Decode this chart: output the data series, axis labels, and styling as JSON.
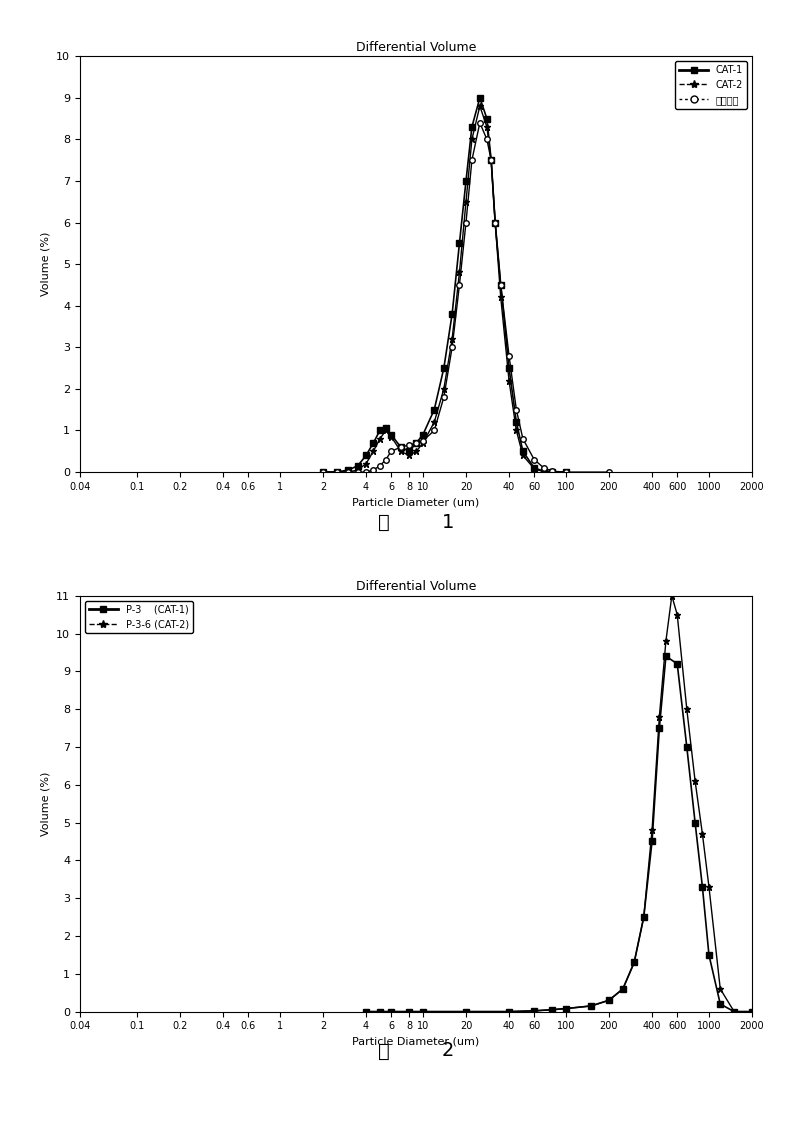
{
  "chart1": {
    "title": "Differential Volume",
    "xlabel": "Particle Diameter (um)",
    "ylabel": "Volume (%)",
    "ylim": [
      0,
      10
    ],
    "legend": [
      "CAT-1",
      "CAT-2",
      "多孔硅胶"
    ],
    "cat1_x": [
      2,
      2.5,
      3,
      3.5,
      4,
      4.5,
      5,
      5.5,
      6,
      7,
      8,
      9,
      10,
      12,
      14,
      16,
      18,
      20,
      22,
      25,
      28,
      30,
      32,
      35,
      40,
      45,
      50,
      60,
      70,
      80,
      100
    ],
    "cat1_y": [
      0.0,
      0.0,
      0.05,
      0.15,
      0.4,
      0.7,
      1.0,
      1.05,
      0.9,
      0.6,
      0.5,
      0.7,
      0.9,
      1.5,
      2.5,
      3.8,
      5.5,
      7.0,
      8.3,
      9.0,
      8.5,
      7.5,
      6.0,
      4.5,
      2.5,
      1.2,
      0.5,
      0.1,
      0.02,
      0.0,
      0.0
    ],
    "cat2_x": [
      2,
      2.5,
      3,
      3.5,
      4,
      4.5,
      5,
      5.5,
      6,
      7,
      8,
      9,
      10,
      12,
      14,
      16,
      18,
      20,
      22,
      25,
      28,
      30,
      32,
      35,
      40,
      45,
      50,
      60,
      70,
      80,
      100
    ],
    "cat2_y": [
      0.0,
      0.0,
      0.0,
      0.05,
      0.2,
      0.5,
      0.8,
      1.0,
      0.85,
      0.5,
      0.4,
      0.5,
      0.7,
      1.2,
      2.0,
      3.2,
      4.8,
      6.5,
      8.0,
      8.8,
      8.3,
      7.5,
      6.0,
      4.2,
      2.2,
      1.0,
      0.4,
      0.08,
      0.01,
      0.0,
      0.0
    ],
    "silica_x": [
      2,
      2.5,
      3,
      3.5,
      4,
      4.5,
      5,
      5.5,
      6,
      7,
      8,
      9,
      10,
      12,
      14,
      16,
      18,
      20,
      22,
      25,
      28,
      30,
      32,
      35,
      40,
      45,
      50,
      60,
      70,
      80,
      100,
      200
    ],
    "silica_y": [
      0.0,
      0.0,
      0.0,
      0.0,
      0.0,
      0.05,
      0.15,
      0.3,
      0.5,
      0.6,
      0.65,
      0.7,
      0.75,
      1.0,
      1.8,
      3.0,
      4.5,
      6.0,
      7.5,
      8.4,
      8.0,
      7.5,
      6.0,
      4.5,
      2.8,
      1.5,
      0.8,
      0.3,
      0.1,
      0.02,
      0.0,
      0.0
    ],
    "xticks": [
      0.04,
      0.1,
      0.2,
      0.4,
      0.6,
      1,
      2,
      4,
      6,
      8,
      10,
      20,
      40,
      60,
      100,
      200,
      400,
      600,
      1000,
      2000
    ],
    "xticklabels": [
      "0.04",
      "0.1",
      "0.2",
      "0.4",
      "0.6",
      "1",
      "2",
      "4",
      "6",
      "8",
      "10",
      "20",
      "40",
      "60",
      "100",
      "200",
      "400",
      "600",
      "1000",
      "2000"
    ]
  },
  "chart2": {
    "title": "Differential Volume",
    "xlabel": "Particle Diameter (um)",
    "ylabel": "Volume (%)",
    "ylim": [
      0,
      11
    ],
    "legend": [
      "P-3    (CAT-1)",
      "P-3-6 (CAT-2)"
    ],
    "cat1_x": [
      4,
      5,
      6,
      8,
      10,
      20,
      40,
      60,
      80,
      100,
      150,
      200,
      250,
      300,
      350,
      400,
      450,
      500,
      600,
      700,
      800,
      900,
      1000,
      1200,
      1500,
      2000
    ],
    "cat1_y": [
      0.0,
      0.0,
      0.0,
      0.0,
      0.0,
      0.0,
      0.0,
      0.02,
      0.05,
      0.08,
      0.15,
      0.3,
      0.6,
      1.3,
      2.5,
      4.5,
      7.5,
      9.4,
      9.2,
      7.0,
      5.0,
      3.3,
      1.5,
      0.2,
      0.0,
      0.0
    ],
    "cat2_x": [
      4,
      5,
      6,
      8,
      10,
      20,
      40,
      60,
      80,
      100,
      150,
      200,
      250,
      300,
      350,
      400,
      450,
      500,
      550,
      600,
      700,
      800,
      900,
      1000,
      1200,
      1500,
      2000
    ],
    "cat2_y": [
      0.0,
      0.0,
      0.0,
      0.0,
      0.0,
      0.0,
      0.0,
      0.02,
      0.05,
      0.08,
      0.15,
      0.3,
      0.6,
      1.3,
      2.5,
      4.8,
      7.8,
      9.8,
      11.0,
      10.5,
      8.0,
      6.1,
      4.7,
      3.3,
      0.6,
      0.0,
      0.0
    ],
    "xticks": [
      0.04,
      0.1,
      0.2,
      0.4,
      0.6,
      1,
      2,
      4,
      6,
      8,
      10,
      20,
      40,
      60,
      100,
      200,
      400,
      600,
      1000,
      2000
    ],
    "xticklabels": [
      "0.04",
      "0.1",
      "0.2",
      "0.4",
      "0.6",
      "1",
      "2",
      "4",
      "6",
      "8",
      "10",
      "20",
      "40",
      "60",
      "100",
      "200",
      "400",
      "600",
      "1000",
      "2000"
    ]
  },
  "fig_width": 8.0,
  "fig_height": 11.24,
  "background_color": "#ffffff"
}
